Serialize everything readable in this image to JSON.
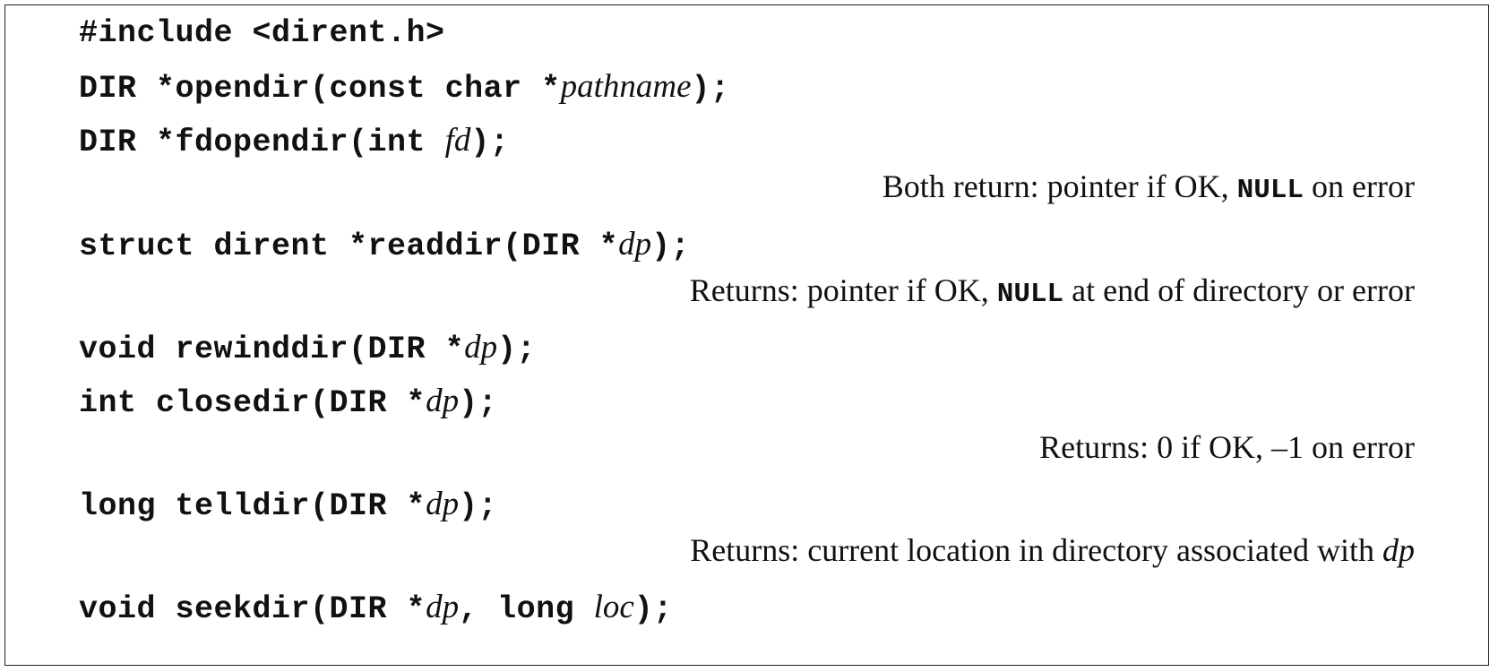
{
  "synopsis": {
    "include": "#include <dirent.h>",
    "opendir": {
      "pre": "DIR *opendir(const char *",
      "arg": "pathname",
      "post": ");"
    },
    "fdopendir": {
      "pre": "DIR *fdopendir(int ",
      "arg": "fd",
      "post": ");"
    },
    "ret_open": {
      "pre": "Both return: pointer if OK, ",
      "code": "NULL",
      "post": " on error"
    },
    "readdir": {
      "pre": "struct dirent *readdir(DIR *",
      "arg": "dp",
      "post": ");"
    },
    "ret_readdir": {
      "pre": "Returns: pointer if OK, ",
      "code": "NULL",
      "post": " at end of directory or error"
    },
    "rewinddir": {
      "pre": "void rewinddir(DIR *",
      "arg": "dp",
      "post": ");"
    },
    "closedir": {
      "pre": "int closedir(DIR *",
      "arg": "dp",
      "post": ");"
    },
    "ret_closedir": "Returns: 0 if OK, –1 on error",
    "telldir": {
      "pre": "long telldir(DIR *",
      "arg": "dp",
      "post": ");"
    },
    "ret_telldir": {
      "pre": "Returns: current location in directory associated with ",
      "arg": "dp"
    },
    "seekdir": {
      "pre": "void seekdir(DIR *",
      "arg": "dp",
      "mid": ", long ",
      "arg2": "loc",
      "post": ");"
    }
  }
}
